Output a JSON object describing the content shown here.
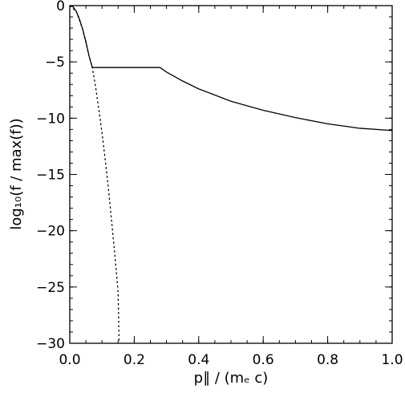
{
  "chart_data": {
    "type": "line",
    "title": "",
    "xlabel": "p∥ / (mₑ c)",
    "ylabel": "log₁₀(f / max(f))",
    "xlim": [
      0.0,
      1.0
    ],
    "ylim": [
      -30,
      0
    ],
    "xticks": [
      0.0,
      0.2,
      0.4,
      0.6,
      0.8,
      1.0
    ],
    "xtick_labels": [
      "0.0",
      "0.2",
      "0.4",
      "0.6",
      "0.8",
      "1.0"
    ],
    "yticks": [
      0,
      -5,
      -10,
      -15,
      -20,
      -25,
      -30
    ],
    "ytick_labels": [
      "0",
      "−5",
      "−10",
      "−15",
      "−20",
      "−25",
      "−30"
    ],
    "grid": false,
    "series": [
      {
        "style": "solid",
        "x": [
          0.0,
          0.01,
          0.02,
          0.03,
          0.04,
          0.05,
          0.06,
          0.07,
          0.1,
          0.15,
          0.2,
          0.25,
          0.28,
          0.3,
          0.35,
          0.4,
          0.5,
          0.6,
          0.7,
          0.8,
          0.9,
          1.0
        ],
        "y": [
          0.0,
          -0.1,
          -0.5,
          -1.2,
          -2.1,
          -3.2,
          -4.5,
          -5.5,
          -5.5,
          -5.5,
          -5.5,
          -5.5,
          -5.5,
          -5.9,
          -6.7,
          -7.4,
          -8.5,
          -9.3,
          -9.95,
          -10.5,
          -10.9,
          -11.1
        ]
      },
      {
        "style": "dashed",
        "x": [
          0.0,
          0.02,
          0.04,
          0.06,
          0.07,
          0.08,
          0.09,
          0.1,
          0.11,
          0.12,
          0.13,
          0.14,
          0.15,
          0.153
        ],
        "y": [
          0.0,
          -0.5,
          -2.1,
          -4.5,
          -5.5,
          -7.2,
          -9.2,
          -11.3,
          -13.7,
          -16.3,
          -19.2,
          -22.2,
          -25.5,
          -30.0
        ]
      }
    ]
  }
}
